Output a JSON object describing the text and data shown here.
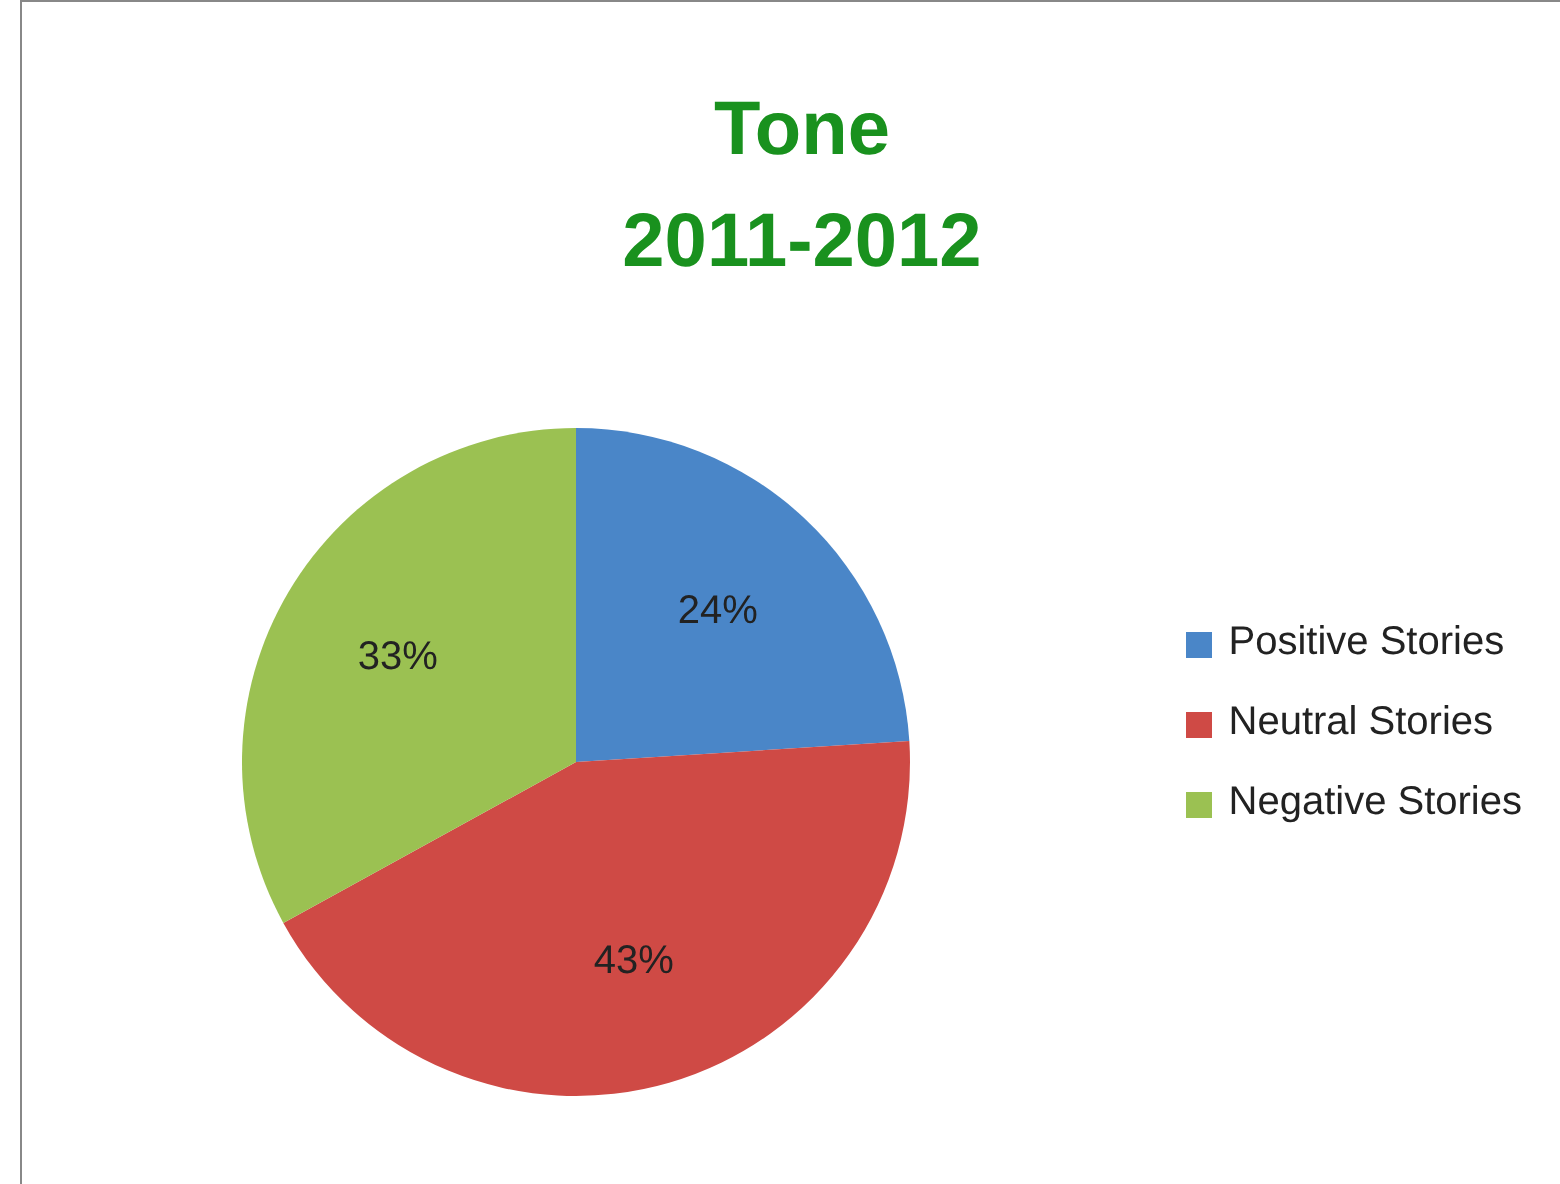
{
  "chart_data": {
    "type": "pie",
    "title": "Tone\n2011-2012",
    "categories": [
      "Positive Stories",
      "Neutral Stories",
      "Negative Stories"
    ],
    "values": [
      24,
      43,
      33
    ],
    "value_labels": [
      "24%",
      "43%",
      "33%"
    ],
    "colors": [
      "#4a86c8",
      "#cf4a45",
      "#9bc152"
    ],
    "legend": "right"
  }
}
